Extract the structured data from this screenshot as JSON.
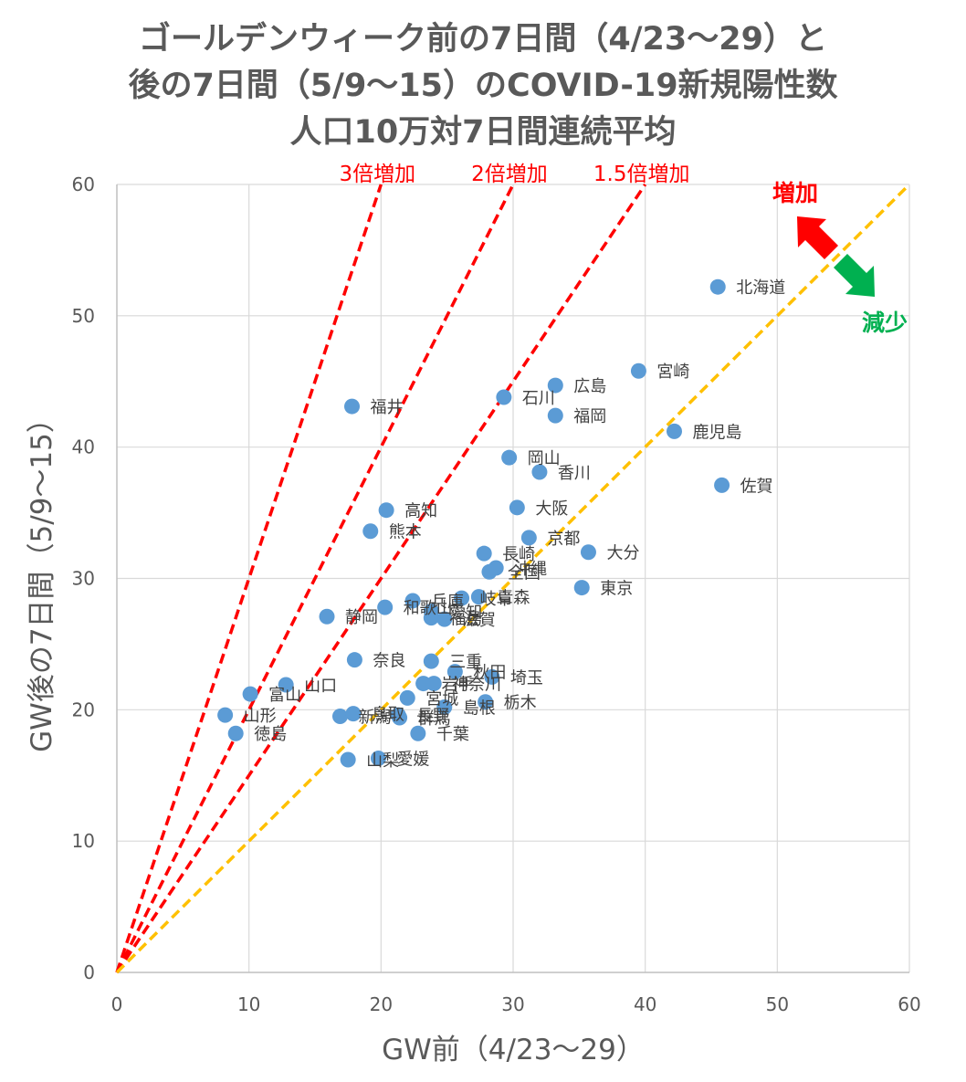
{
  "chart_data": {
    "type": "scatter",
    "title": [
      "ゴールデンウィーク前の7日間（4/23〜29）と",
      "後の7日間（5/9〜15）のCOVID-19新規陽性数",
      "人口10万対7日間連続平均"
    ],
    "xlabel": "GW前（4/23〜29）",
    "ylabel": "GW後の7日間（5/9〜15）",
    "xlim": [
      0,
      60
    ],
    "ylim": [
      0,
      60
    ],
    "xticks": [
      "0",
      "10",
      "20",
      "30",
      "40",
      "50",
      "60"
    ],
    "yticks": [
      "0",
      "10",
      "20",
      "30",
      "40",
      "50",
      "60"
    ],
    "grid": true,
    "marker_color": "#5b9bd5",
    "reference_lines": [
      {
        "label": "3倍増加",
        "slope": 3,
        "color": "#ff0000"
      },
      {
        "label": "2倍増加",
        "slope": 2,
        "color": "#ff0000"
      },
      {
        "label": "1.5倍増加",
        "slope": 1.5,
        "color": "#ff0000"
      },
      {
        "label": "",
        "slope": 1,
        "color": "#ffc000"
      }
    ],
    "annotations": {
      "increase": "増加",
      "decrease": "減少",
      "increase_color": "#ff0000",
      "decrease_color": "#00b050"
    },
    "points": [
      {
        "label": "北海道",
        "x": 45.5,
        "y": 52.2
      },
      {
        "label": "宮崎",
        "x": 39.5,
        "y": 45.8
      },
      {
        "label": "広島",
        "x": 33.2,
        "y": 44.7
      },
      {
        "label": "石川",
        "x": 29.3,
        "y": 43.8
      },
      {
        "label": "福井",
        "x": 17.8,
        "y": 43.1
      },
      {
        "label": "福岡",
        "x": 33.2,
        "y": 42.4
      },
      {
        "label": "鹿児島",
        "x": 42.2,
        "y": 41.2
      },
      {
        "label": "岡山",
        "x": 29.7,
        "y": 39.2
      },
      {
        "label": "香川",
        "x": 32.0,
        "y": 38.1
      },
      {
        "label": "佐賀",
        "x": 45.8,
        "y": 37.1
      },
      {
        "label": "大阪",
        "x": 30.3,
        "y": 35.4
      },
      {
        "label": "高知",
        "x": 20.4,
        "y": 35.2
      },
      {
        "label": "熊本",
        "x": 19.2,
        "y": 33.6
      },
      {
        "label": "京都",
        "x": 31.2,
        "y": 33.1
      },
      {
        "label": "大分",
        "x": 35.7,
        "y": 32.0
      },
      {
        "label": "長崎",
        "x": 27.8,
        "y": 31.9
      },
      {
        "label": "沖縄",
        "x": 28.7,
        "y": 30.8
      },
      {
        "label": "全国",
        "x": 28.2,
        "y": 30.5
      },
      {
        "label": "東京",
        "x": 35.2,
        "y": 29.3
      },
      {
        "label": "青森",
        "x": 27.4,
        "y": 28.6
      },
      {
        "label": "岐阜",
        "x": 26.1,
        "y": 28.5
      },
      {
        "label": "兵庫",
        "x": 22.4,
        "y": 28.3
      },
      {
        "label": "和歌山",
        "x": 20.3,
        "y": 27.8
      },
      {
        "label": "愛知",
        "x": 23.8,
        "y": 27.5
      },
      {
        "label": "静岡",
        "x": 15.9,
        "y": 27.1
      },
      {
        "label": "福島",
        "x": 23.8,
        "y": 27.0
      },
      {
        "label": "滋賀",
        "x": 24.8,
        "y": 26.9
      },
      {
        "label": "奈良",
        "x": 18.0,
        "y": 23.8
      },
      {
        "label": "三重",
        "x": 23.8,
        "y": 23.7
      },
      {
        "label": "秋田",
        "x": 25.6,
        "y": 22.9
      },
      {
        "label": "埼玉",
        "x": 28.4,
        "y": 22.5
      },
      {
        "label": "山口",
        "x": 12.8,
        "y": 21.9
      },
      {
        "label": "岩手",
        "x": 23.2,
        "y": 22.0
      },
      {
        "label": "神奈川",
        "x": 24.0,
        "y": 22.0
      },
      {
        "label": "富山",
        "x": 10.1,
        "y": 21.2
      },
      {
        "label": "宮城",
        "x": 22.0,
        "y": 20.9
      },
      {
        "label": "栃木",
        "x": 27.9,
        "y": 20.6
      },
      {
        "label": "島根",
        "x": 24.8,
        "y": 20.2
      },
      {
        "label": "山形",
        "x": 8.2,
        "y": 19.6
      },
      {
        "label": "新潟",
        "x": 16.9,
        "y": 19.5
      },
      {
        "label": "鳥取",
        "x": 17.9,
        "y": 19.7
      },
      {
        "label": "長野",
        "x": 21.3,
        "y": 19.6
      },
      {
        "label": "群馬",
        "x": 21.4,
        "y": 19.4
      },
      {
        "label": "千葉",
        "x": 22.8,
        "y": 18.2
      },
      {
        "label": "徳島",
        "x": 9.0,
        "y": 18.2
      },
      {
        "label": "山梨",
        "x": 17.5,
        "y": 16.2
      },
      {
        "label": "愛媛",
        "x": 19.8,
        "y": 16.3
      }
    ]
  }
}
